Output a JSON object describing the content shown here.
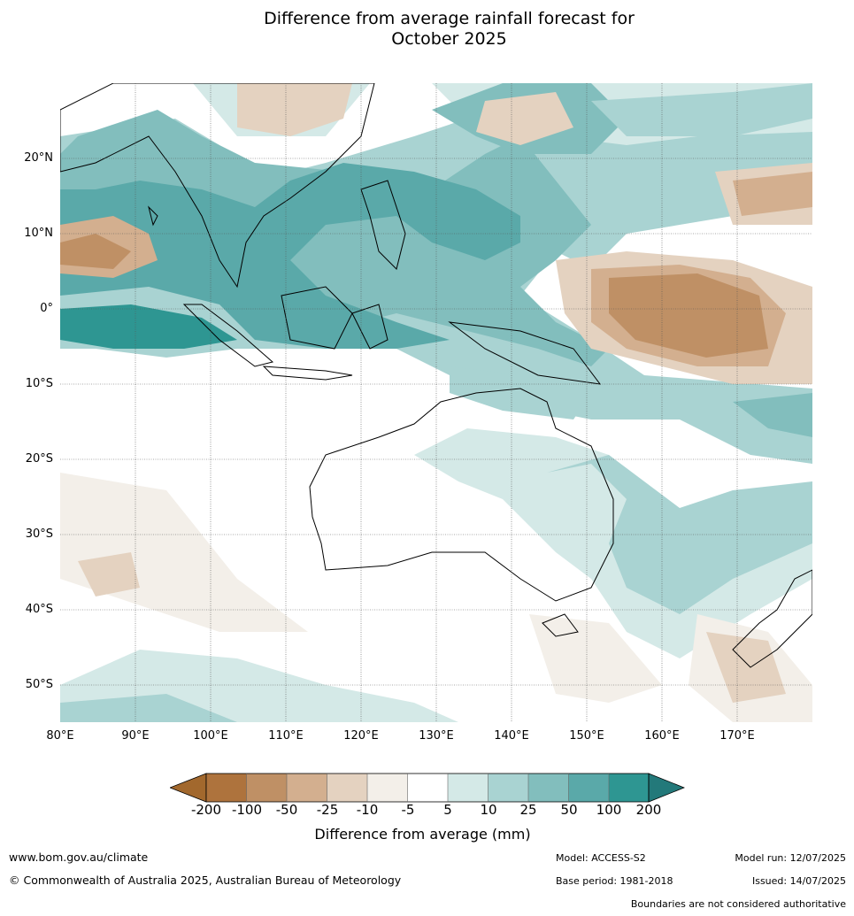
{
  "title_line1": "Difference from average rainfall forecast for",
  "title_line2": "October 2025",
  "lat_labels": [
    "20°N",
    "10°N",
    "0°",
    "10°S",
    "20°S",
    "30°S",
    "40°S",
    "50°S"
  ],
  "lon_labels": [
    "80°E",
    "90°E",
    "100°E",
    "110°E",
    "120°E",
    "130°E",
    "140°E",
    "150°E",
    "160°E",
    "170°E"
  ],
  "colorbar": {
    "ticks": [
      "-200",
      "-100",
      "-50",
      "-25",
      "-10",
      "-5",
      "5",
      "10",
      "25",
      "50",
      "100",
      "200"
    ],
    "colors": [
      "#a2682d",
      "#ae733d",
      "#bf9065",
      "#d3af8f",
      "#e4d2c0",
      "#f3efe9",
      "#ffffff",
      "#d4e9e7",
      "#a9d3d2",
      "#82bebd",
      "#5aa9a9",
      "#2e9692",
      "#23797a"
    ],
    "label": "Difference from average (mm)"
  },
  "footer": {
    "url": "www.bom.gov.au/climate",
    "copyright": "© Commonwealth of Australia 2025, Australian Bureau of Meteorology",
    "model": "Model: ACCESS-S2",
    "base_period": "Base period: 1981-2018",
    "model_run": "Model run: 12/07/2025",
    "issued": "Issued: 14/07/2025",
    "disclaimer": "Boundaries are not considered authoritative"
  }
}
